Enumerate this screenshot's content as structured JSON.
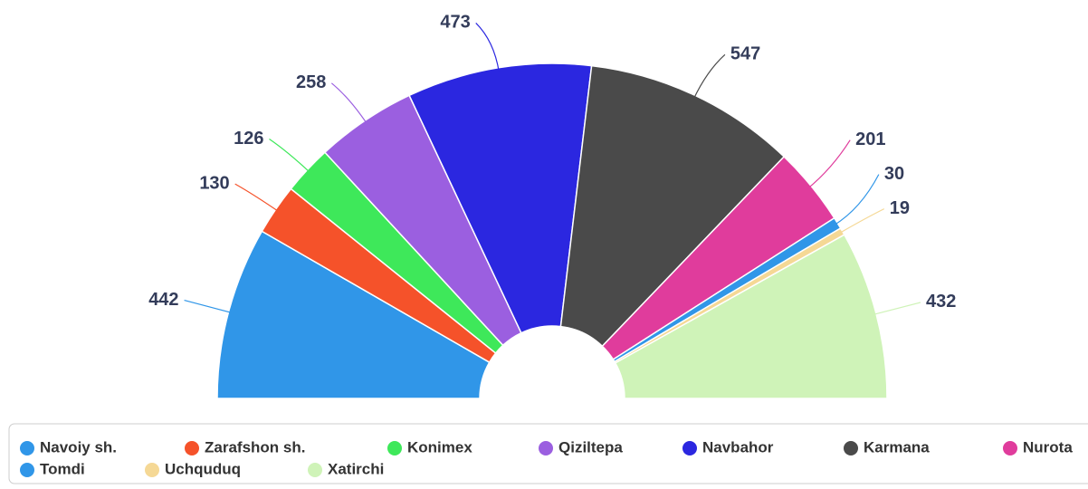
{
  "chart_data": {
    "type": "semi-donut",
    "categories": [
      "Navoiy sh.",
      "Zarafshon sh.",
      "Konimex",
      "Qiziltepa",
      "Navbahor",
      "Karmana",
      "Nurota",
      "Tomdi",
      "Uchquduq",
      "Xatirchi"
    ],
    "values": [
      442,
      130,
      126,
      258,
      473,
      547,
      201,
      30,
      19,
      432
    ],
    "colors": [
      "#3096e8",
      "#f5522a",
      "#3ee85a",
      "#9b5fe0",
      "#2b27e0",
      "#4a4a4a",
      "#e03c9c",
      "#3096e8",
      "#f5d895",
      "#cff3b8"
    ]
  }
}
